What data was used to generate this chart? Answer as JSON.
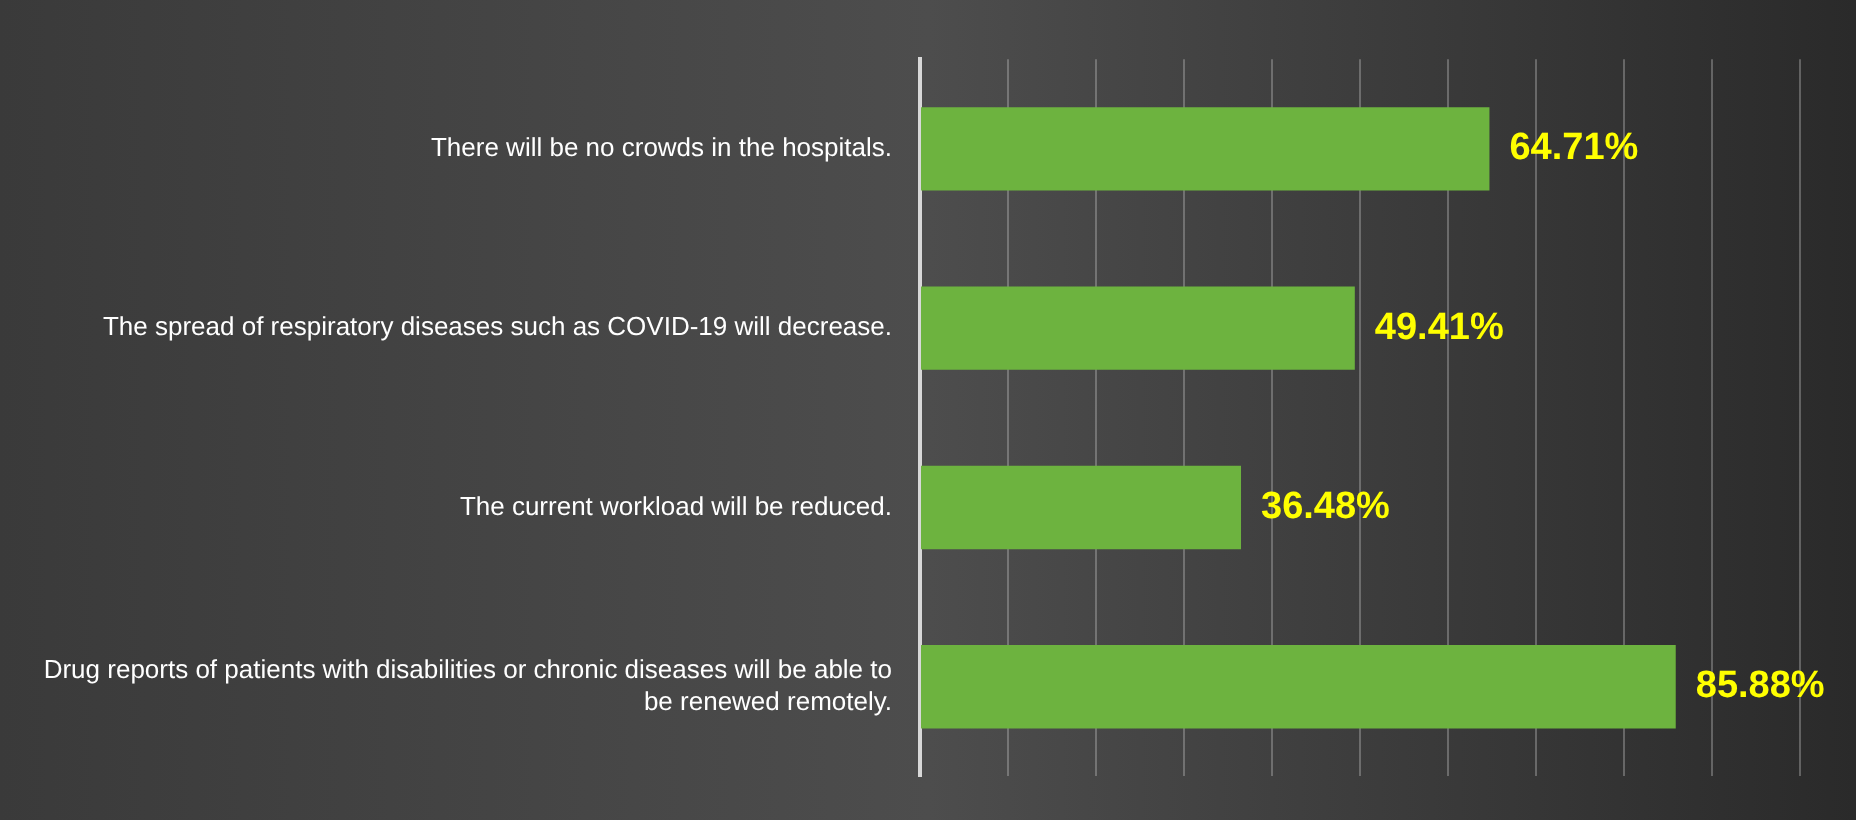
{
  "chart_data": {
    "type": "bar",
    "orientation": "horizontal",
    "categories": [
      "There will be no crowds in the hospitals.",
      "The spread of respiratory diseases such as COVID-19 will decrease.",
      "The current workload will be reduced.",
      "Drug reports of patients with disabilities or chronic diseases will be able to be renewed remotely."
    ],
    "values": [
      64.71,
      49.41,
      36.48,
      85.88
    ],
    "value_labels": [
      "64.71%",
      "49.41%",
      "36.48%",
      "85.88%"
    ],
    "color": "#6db33f",
    "xlim": [
      0,
      100
    ],
    "xticks": [
      {
        "value": 0,
        "label": null
      },
      {
        "value": 10,
        "label": null
      },
      {
        "value": 20,
        "label": null
      },
      {
        "value": 30,
        "label": null
      },
      {
        "value": 40,
        "label": null
      },
      {
        "value": 50,
        "label": null
      },
      {
        "value": 60,
        "label": null
      },
      {
        "value": 70,
        "label": null
      },
      {
        "value": 80,
        "label": null
      },
      {
        "value": 90,
        "label": null
      },
      {
        "value": 100,
        "label": null
      }
    ],
    "grid": "x",
    "tick_labels": "y"
  }
}
